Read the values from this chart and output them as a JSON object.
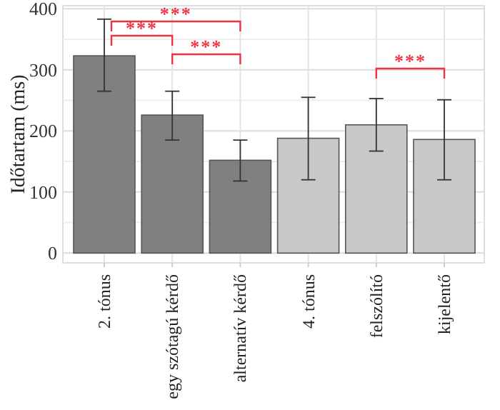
{
  "chart_data": {
    "type": "bar",
    "ylabel": "Időtartam (ms)",
    "categories": [
      "2. tónus",
      "egy szótagú kérdő",
      "alternatív kérdő",
      "4. tónus",
      "felszólító",
      "kijelentő"
    ],
    "values": [
      323,
      226,
      152,
      188,
      210,
      186
    ],
    "colors": [
      "#808080",
      "#808080",
      "#808080",
      "#c8c8c8",
      "#c8c8c8",
      "#c8c8c8"
    ],
    "errors": [
      [
        265,
        383
      ],
      [
        185,
        265
      ],
      [
        118,
        185
      ],
      [
        120,
        255
      ],
      [
        167,
        253
      ],
      [
        120,
        251
      ]
    ],
    "ylim": [
      -16,
      405
    ],
    "yticks": [
      0,
      {
        "value": 50,
        "label": null
      },
      100,
      {
        "value": 150,
        "label": null
      },
      200,
      {
        "value": 250,
        "label": null
      },
      300,
      {
        "value": 350,
        "label": null
      },
      400
    ],
    "grid": true,
    "annotations": [
      "***",
      "***",
      "***",
      "***"
    ]
  }
}
